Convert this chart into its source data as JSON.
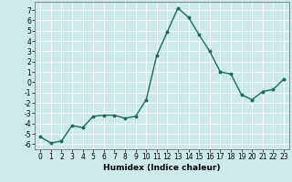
{
  "x": [
    0,
    1,
    2,
    3,
    4,
    5,
    6,
    7,
    8,
    9,
    10,
    11,
    12,
    13,
    14,
    15,
    16,
    17,
    18,
    19,
    20,
    21,
    22,
    23
  ],
  "y": [
    -5.3,
    -5.9,
    -5.7,
    -4.2,
    -4.4,
    -3.3,
    -3.2,
    -3.2,
    -3.5,
    -3.3,
    -1.7,
    2.6,
    4.9,
    7.2,
    6.3,
    4.6,
    3.0,
    1.0,
    0.8,
    -1.2,
    -1.7,
    -0.9,
    -0.7,
    0.3
  ],
  "line_color": "#1a6b5a",
  "marker": "o",
  "markersize": 1.8,
  "linewidth": 1.0,
  "xlabel": "Humidex (Indice chaleur)",
  "xlabel_fontsize": 6.5,
  "bg_color": "#cceaea",
  "grid_color": "#ffffff",
  "tick_fontsize": 5.5,
  "ylim": [
    -6.5,
    7.8
  ],
  "xlim": [
    -0.5,
    23.5
  ],
  "yticks": [
    -6,
    -5,
    -4,
    -3,
    -2,
    -1,
    0,
    1,
    2,
    3,
    4,
    5,
    6,
    7
  ],
  "xticks": [
    0,
    1,
    2,
    3,
    4,
    5,
    6,
    7,
    8,
    9,
    10,
    11,
    12,
    13,
    14,
    15,
    16,
    17,
    18,
    19,
    20,
    21,
    22,
    23
  ]
}
